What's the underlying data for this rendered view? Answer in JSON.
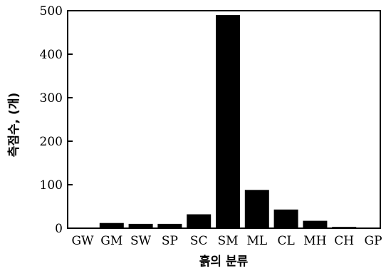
{
  "chart_data": {
    "type": "bar",
    "title": "",
    "xlabel": "흙의 분류",
    "ylabel": "측점수, (개)",
    "categories": [
      "GW",
      "GM",
      "SW",
      "SP",
      "SC",
      "SM",
      "ML",
      "CL",
      "MH",
      "CH",
      "GP"
    ],
    "values": [
      0,
      12,
      10,
      10,
      32,
      490,
      88,
      43,
      17,
      3,
      0
    ],
    "ylim": [
      0,
      500
    ],
    "yticks": [
      0,
      100,
      200,
      300,
      400,
      500
    ],
    "grid": false,
    "bar_color": "#000000"
  }
}
